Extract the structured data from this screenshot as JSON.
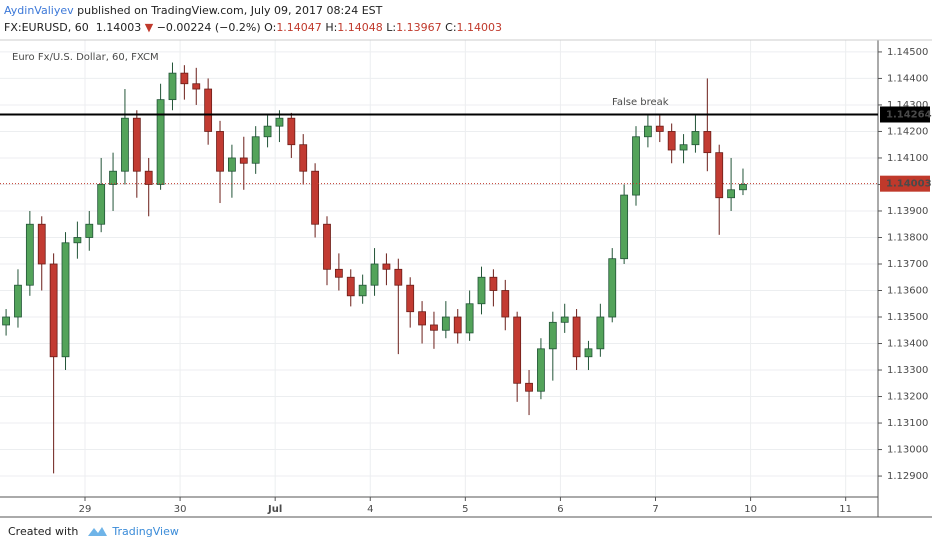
{
  "header": {
    "author": "AydinValiyev",
    "published": "published on TradingView.com, July 09, 2017 08:24 EST",
    "symbol": "FX:EURUSD, 60",
    "last": "1.14003",
    "change": "−0.00224 (−0.2%)",
    "o_label": "O:",
    "o": "1.14047",
    "h_label": "H:",
    "h": "1.14048",
    "l_label": "L:",
    "l": "1.13967",
    "c_label": "C:",
    "c": "1.14003"
  },
  "footer": {
    "created": "Created with",
    "brand": "TradingView"
  },
  "chart_data": {
    "type": "candlestick",
    "legend": "Euro Fx/U.S. Dollar, 60, FXCM",
    "up_color": "#53a35a",
    "up_border": "#225437",
    "down_color": "#c23b32",
    "down_border": "#6b1d18",
    "grid": true,
    "xlim": [
      0.106,
      9.34
    ],
    "xticks": [
      {
        "value": 1,
        "label": "29"
      },
      {
        "value": 2,
        "label": "30"
      },
      {
        "value": 3,
        "label": "Jul"
      },
      {
        "value": 4,
        "label": "4"
      },
      {
        "value": 5,
        "label": "5"
      },
      {
        "value": 6,
        "label": "6"
      },
      {
        "value": 7,
        "label": "7"
      },
      {
        "value": 8,
        "label": "10"
      },
      {
        "value": 9,
        "label": "11"
      }
    ],
    "ylim": [
      1.12821,
      1.14545
    ],
    "yticks": [
      {
        "value": 1.129,
        "label": "1.12900"
      },
      {
        "value": 1.13,
        "label": "1.13000"
      },
      {
        "value": 1.131,
        "label": "1.13100"
      },
      {
        "value": 1.132,
        "label": "1.13200"
      },
      {
        "value": 1.133,
        "label": "1.13300"
      },
      {
        "value": 1.134,
        "label": "1.13400"
      },
      {
        "value": 1.135,
        "label": "1.13500"
      },
      {
        "value": 1.136,
        "label": "1.13600"
      },
      {
        "value": 1.137,
        "label": "1.13700"
      },
      {
        "value": 1.138,
        "label": "1.13800"
      },
      {
        "value": 1.139,
        "label": "1.13900"
      },
      {
        "value": 1.14,
        "label": "1.14000"
      },
      {
        "value": 1.141,
        "label": "1.14100"
      },
      {
        "value": 1.142,
        "label": "1.14200"
      },
      {
        "value": 1.143,
        "label": "1.14300"
      },
      {
        "value": 1.144,
        "label": "1.14400"
      },
      {
        "value": 1.145,
        "label": "1.14500"
      }
    ],
    "levels": [
      {
        "value": 1.14264,
        "color": "#000000",
        "style": "solid"
      },
      {
        "value": 1.14003,
        "color": "#c0392b",
        "style": "dotted"
      }
    ],
    "annotation": {
      "text": "False break",
      "color": "#e0201b"
    },
    "candles": [
      {
        "x": 0.17,
        "open": 1.1347,
        "high": 1.1353,
        "low": 1.1343,
        "close": 1.135
      },
      {
        "x": 0.295,
        "open": 1.135,
        "high": 1.1368,
        "low": 1.1346,
        "close": 1.1362
      },
      {
        "x": 0.42,
        "open": 1.1362,
        "high": 1.139,
        "low": 1.1358,
        "close": 1.1385
      },
      {
        "x": 0.545,
        "open": 1.1385,
        "high": 1.1388,
        "low": 1.136,
        "close": 1.137
      },
      {
        "x": 0.67,
        "open": 1.137,
        "high": 1.1374,
        "low": 1.1291,
        "close": 1.1335
      },
      {
        "x": 0.795,
        "open": 1.1335,
        "high": 1.1382,
        "low": 1.133,
        "close": 1.1378
      },
      {
        "x": 0.92,
        "open": 1.1378,
        "high": 1.1386,
        "low": 1.1372,
        "close": 1.138
      },
      {
        "x": 1.045,
        "open": 1.138,
        "high": 1.139,
        "low": 1.1375,
        "close": 1.1385
      },
      {
        "x": 1.17,
        "open": 1.1385,
        "high": 1.141,
        "low": 1.1382,
        "close": 1.14
      },
      {
        "x": 1.295,
        "open": 1.14,
        "high": 1.1412,
        "low": 1.139,
        "close": 1.1405
      },
      {
        "x": 1.42,
        "open": 1.1405,
        "high": 1.1436,
        "low": 1.14,
        "close": 1.1425
      },
      {
        "x": 1.545,
        "open": 1.1425,
        "high": 1.1428,
        "low": 1.1395,
        "close": 1.1405
      },
      {
        "x": 1.67,
        "open": 1.1405,
        "high": 1.141,
        "low": 1.1388,
        "close": 1.14
      },
      {
        "x": 1.795,
        "open": 1.14,
        "high": 1.1438,
        "low": 1.1398,
        "close": 1.1432
      },
      {
        "x": 1.92,
        "open": 1.1432,
        "high": 1.1446,
        "low": 1.1428,
        "close": 1.1442
      },
      {
        "x": 2.045,
        "open": 1.1442,
        "high": 1.1445,
        "low": 1.1432,
        "close": 1.1438
      },
      {
        "x": 2.17,
        "open": 1.1438,
        "high": 1.1444,
        "low": 1.143,
        "close": 1.1436
      },
      {
        "x": 2.295,
        "open": 1.1436,
        "high": 1.144,
        "low": 1.1415,
        "close": 1.142
      },
      {
        "x": 2.42,
        "open": 1.142,
        "high": 1.1424,
        "low": 1.1393,
        "close": 1.1405
      },
      {
        "x": 2.545,
        "open": 1.1405,
        "high": 1.1415,
        "low": 1.1395,
        "close": 1.141
      },
      {
        "x": 2.67,
        "open": 1.141,
        "high": 1.1418,
        "low": 1.1398,
        "close": 1.1408
      },
      {
        "x": 2.795,
        "open": 1.1408,
        "high": 1.1422,
        "low": 1.1404,
        "close": 1.1418
      },
      {
        "x": 2.92,
        "open": 1.1418,
        "high": 1.1426,
        "low": 1.1414,
        "close": 1.1422
      },
      {
        "x": 3.045,
        "open": 1.1422,
        "high": 1.1428,
        "low": 1.1416,
        "close": 1.1425
      },
      {
        "x": 3.17,
        "open": 1.1425,
        "high": 1.1427,
        "low": 1.141,
        "close": 1.1415
      },
      {
        "x": 3.295,
        "open": 1.1415,
        "high": 1.1419,
        "low": 1.14,
        "close": 1.1405
      },
      {
        "x": 3.42,
        "open": 1.1405,
        "high": 1.1408,
        "low": 1.138,
        "close": 1.1385
      },
      {
        "x": 3.545,
        "open": 1.1385,
        "high": 1.1388,
        "low": 1.1362,
        "close": 1.1368
      },
      {
        "x": 3.67,
        "open": 1.1368,
        "high": 1.1374,
        "low": 1.136,
        "close": 1.1365
      },
      {
        "x": 3.795,
        "open": 1.1365,
        "high": 1.1368,
        "low": 1.1354,
        "close": 1.1358
      },
      {
        "x": 3.92,
        "open": 1.1358,
        "high": 1.1366,
        "low": 1.1355,
        "close": 1.1362
      },
      {
        "x": 4.045,
        "open": 1.1362,
        "high": 1.1376,
        "low": 1.1358,
        "close": 1.137
      },
      {
        "x": 4.17,
        "open": 1.137,
        "high": 1.1374,
        "low": 1.1362,
        "close": 1.1368
      },
      {
        "x": 4.295,
        "open": 1.1368,
        "high": 1.1372,
        "low": 1.1336,
        "close": 1.1362
      },
      {
        "x": 4.42,
        "open": 1.1362,
        "high": 1.1365,
        "low": 1.1346,
        "close": 1.1352
      },
      {
        "x": 4.545,
        "open": 1.1352,
        "high": 1.1356,
        "low": 1.134,
        "close": 1.1347
      },
      {
        "x": 4.67,
        "open": 1.1347,
        "high": 1.1352,
        "low": 1.1338,
        "close": 1.1345
      },
      {
        "x": 4.795,
        "open": 1.1345,
        "high": 1.1356,
        "low": 1.1342,
        "close": 1.135
      },
      {
        "x": 4.92,
        "open": 1.135,
        "high": 1.1353,
        "low": 1.134,
        "close": 1.1344
      },
      {
        "x": 5.045,
        "open": 1.1344,
        "high": 1.136,
        "low": 1.1341,
        "close": 1.1355
      },
      {
        "x": 5.17,
        "open": 1.1355,
        "high": 1.1369,
        "low": 1.1351,
        "close": 1.1365
      },
      {
        "x": 5.295,
        "open": 1.1365,
        "high": 1.1368,
        "low": 1.1354,
        "close": 1.136
      },
      {
        "x": 5.42,
        "open": 1.136,
        "high": 1.1364,
        "low": 1.1345,
        "close": 1.135
      },
      {
        "x": 5.545,
        "open": 1.135,
        "high": 1.1352,
        "low": 1.1318,
        "close": 1.1325
      },
      {
        "x": 5.67,
        "open": 1.1325,
        "high": 1.133,
        "low": 1.1313,
        "close": 1.1322
      },
      {
        "x": 5.795,
        "open": 1.1322,
        "high": 1.1342,
        "low": 1.1319,
        "close": 1.1338
      },
      {
        "x": 5.92,
        "open": 1.1338,
        "high": 1.1352,
        "low": 1.1326,
        "close": 1.1348
      },
      {
        "x": 6.045,
        "open": 1.1348,
        "high": 1.1355,
        "low": 1.1344,
        "close": 1.135
      },
      {
        "x": 6.17,
        "open": 1.135,
        "high": 1.1353,
        "low": 1.133,
        "close": 1.1335
      },
      {
        "x": 6.295,
        "open": 1.1335,
        "high": 1.1341,
        "low": 1.133,
        "close": 1.1338
      },
      {
        "x": 6.42,
        "open": 1.1338,
        "high": 1.1355,
        "low": 1.1335,
        "close": 1.135
      },
      {
        "x": 6.545,
        "open": 1.135,
        "high": 1.1376,
        "low": 1.1348,
        "close": 1.1372
      },
      {
        "x": 6.67,
        "open": 1.1372,
        "high": 1.14,
        "low": 1.137,
        "close": 1.1396
      },
      {
        "x": 6.795,
        "open": 1.1396,
        "high": 1.1422,
        "low": 1.1392,
        "close": 1.1418
      },
      {
        "x": 6.92,
        "open": 1.1418,
        "high": 1.1426,
        "low": 1.1414,
        "close": 1.1422
      },
      {
        "x": 7.045,
        "open": 1.1422,
        "high": 1.1426,
        "low": 1.1416,
        "close": 1.142
      },
      {
        "x": 7.17,
        "open": 1.142,
        "high": 1.1423,
        "low": 1.1408,
        "close": 1.1413
      },
      {
        "x": 7.295,
        "open": 1.1413,
        "high": 1.1419,
        "low": 1.1408,
        "close": 1.1415
      },
      {
        "x": 7.42,
        "open": 1.1415,
        "high": 1.1426,
        "low": 1.1412,
        "close": 1.142
      },
      {
        "x": 7.545,
        "open": 1.142,
        "high": 1.144,
        "low": 1.1405,
        "close": 1.1412
      },
      {
        "x": 7.67,
        "open": 1.1412,
        "high": 1.1415,
        "low": 1.1381,
        "close": 1.1395
      },
      {
        "x": 7.795,
        "open": 1.1395,
        "high": 1.141,
        "low": 1.139,
        "close": 1.1398
      },
      {
        "x": 7.92,
        "open": 1.1398,
        "high": 1.1406,
        "low": 1.1396,
        "close": 1.14
      }
    ]
  }
}
